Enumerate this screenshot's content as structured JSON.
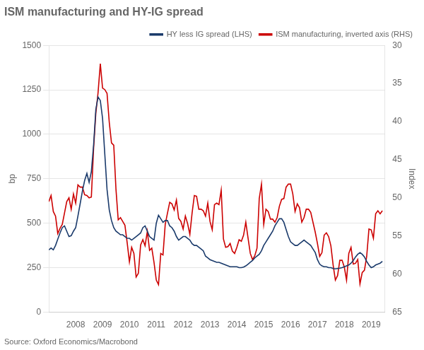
{
  "chart_data": {
    "type": "line",
    "title": "ISM manufacturing and HY-IG spread",
    "ylabel": "bp",
    "y2label": "Index",
    "source": "Source: Oxford Economics/Macrobond",
    "x": [
      2007.0,
      2007.083,
      2007.167,
      2007.25,
      2007.333,
      2007.417,
      2007.5,
      2007.583,
      2007.667,
      2007.75,
      2007.833,
      2007.917,
      2008.0,
      2008.083,
      2008.167,
      2008.25,
      2008.333,
      2008.417,
      2008.5,
      2008.583,
      2008.667,
      2008.75,
      2008.833,
      2008.917,
      2009.0,
      2009.083,
      2009.167,
      2009.25,
      2009.333,
      2009.417,
      2009.5,
      2009.583,
      2009.667,
      2009.75,
      2009.833,
      2009.917,
      2010.0,
      2010.083,
      2010.167,
      2010.25,
      2010.333,
      2010.417,
      2010.5,
      2010.583,
      2010.667,
      2010.75,
      2010.833,
      2010.917,
      2011.0,
      2011.083,
      2011.167,
      2011.25,
      2011.333,
      2011.417,
      2011.5,
      2011.583,
      2011.667,
      2011.75,
      2011.833,
      2011.917,
      2012.0,
      2012.083,
      2012.167,
      2012.25,
      2012.333,
      2012.417,
      2012.5,
      2012.583,
      2012.667,
      2012.75,
      2012.833,
      2012.917,
      2013.0,
      2013.083,
      2013.167,
      2013.25,
      2013.333,
      2013.417,
      2013.5,
      2013.583,
      2013.667,
      2013.75,
      2013.833,
      2013.917,
      2014.0,
      2014.083,
      2014.167,
      2014.25,
      2014.333,
      2014.417,
      2014.5,
      2014.583,
      2014.667,
      2014.75,
      2014.833,
      2014.917,
      2015.0,
      2015.083,
      2015.167,
      2015.25,
      2015.333,
      2015.417,
      2015.5,
      2015.583,
      2015.667,
      2015.75,
      2015.833,
      2015.917,
      2016.0,
      2016.083,
      2016.167,
      2016.25,
      2016.333,
      2016.417,
      2016.5,
      2016.583,
      2016.667,
      2016.75,
      2016.833,
      2016.917,
      2017.0,
      2017.083,
      2017.167,
      2017.25,
      2017.333,
      2017.417,
      2017.5,
      2017.583,
      2017.667,
      2017.75,
      2017.833,
      2017.917,
      2018.0,
      2018.083,
      2018.167,
      2018.25,
      2018.333,
      2018.417,
      2018.5,
      2018.583,
      2018.667,
      2018.75,
      2018.833,
      2018.917,
      2019.0,
      2019.083,
      2019.167,
      2019.25,
      2019.333,
      2019.417
    ],
    "series": [
      {
        "name": "HY less IG spread (LHS)",
        "color": "#1a3a6b",
        "values": [
          350,
          360,
          350,
          375,
          410,
          445,
          475,
          485,
          455,
          425,
          430,
          455,
          475,
          540,
          610,
          680,
          740,
          780,
          730,
          790,
          940,
          1140,
          1210,
          1190,
          1090,
          890,
          690,
          575,
          515,
          475,
          455,
          445,
          435,
          435,
          425,
          415,
          415,
          405,
          415,
          425,
          435,
          445,
          475,
          485,
          455,
          425,
          415,
          405,
          500,
          545,
          525,
          505,
          515,
          515,
          485,
          475,
          455,
          425,
          405,
          415,
          425,
          425,
          415,
          405,
          385,
          375,
          375,
          365,
          355,
          345,
          315,
          305,
          295,
          290,
          285,
          280,
          280,
          275,
          270,
          265,
          260,
          255,
          255,
          255,
          255,
          250,
          250,
          253,
          260,
          270,
          280,
          290,
          305,
          315,
          325,
          345,
          375,
          395,
          415,
          435,
          455,
          485,
          505,
          525,
          525,
          505,
          465,
          425,
          395,
          385,
          375,
          375,
          385,
          395,
          405,
          395,
          385,
          375,
          355,
          335,
          295,
          270,
          260,
          255,
          255,
          250,
          250,
          245,
          243,
          245,
          247,
          250,
          255,
          260,
          265,
          275,
          290,
          310,
          325,
          335,
          325,
          310,
          285,
          265,
          250,
          255,
          265,
          270,
          275,
          285
        ]
      },
      {
        "name": "ISM manufacturing, inverted axis (RHS)",
        "color": "#cc0000",
        "axis": "y2",
        "values": [
          50.5,
          49.7,
          51.8,
          52.4,
          54.7,
          54.0,
          53.5,
          52.0,
          50.5,
          50.0,
          51.5,
          49.5,
          50.7,
          48.3,
          48.6,
          48.6,
          49.6,
          49.7,
          50.0,
          49.9,
          43.5,
          38.9,
          36.2,
          32.4,
          35.6,
          35.8,
          36.3,
          40.1,
          42.8,
          43.1,
          48.9,
          52.9,
          52.6,
          53.1,
          53.6,
          55.9,
          58.4,
          56.5,
          57.3,
          60.4,
          59.9,
          56.2,
          55.5,
          56.3,
          54.4,
          56.9,
          56.6,
          58.5,
          60.8,
          61.4,
          57.3,
          57.5,
          53.5,
          52.0,
          50.6,
          50.8,
          51.6,
          50.3,
          52.7,
          53.1,
          54.1,
          52.4,
          53.4,
          54.8,
          52.0,
          49.7,
          49.8,
          51.5,
          51.5,
          51.7,
          52.4,
          50.7,
          53.1,
          54.2,
          50.9,
          50.7,
          50.9,
          49.0,
          55.4,
          56.5,
          56.4,
          56.0,
          57.0,
          57.3,
          56.5,
          55.5,
          55.7,
          54.9,
          53.2,
          55.3,
          57.3,
          58.1,
          57.6,
          56.6,
          50.1,
          48.2,
          53.5,
          51.5,
          51.8,
          52.8,
          52.8,
          53.2,
          52.6,
          51.1,
          50.2,
          50.1,
          48.6,
          48.2,
          48.2,
          49.5,
          51.8,
          50.8,
          51.3,
          53.2,
          52.6,
          51.5,
          51.5,
          51.9,
          53.2,
          54.5,
          56.0,
          57.7,
          57.2,
          54.9,
          54.6,
          55.1,
          56.3,
          58.8,
          60.8,
          60.2,
          58.2,
          58.2,
          59.1,
          60.8,
          57.3,
          56.5,
          58.7,
          58.6,
          58.1,
          61.3,
          59.8,
          59.5,
          57.7,
          54.1,
          54.2,
          55.3,
          52.1,
          51.7,
          52.1,
          51.7
        ]
      }
    ],
    "xlim": [
      2007.0,
      2019.5
    ],
    "xticks": [
      2008,
      2009,
      2010,
      2011,
      2012,
      2013,
      2014,
      2015,
      2016,
      2017,
      2018,
      2019
    ],
    "ylim": [
      0,
      1500
    ],
    "yticks": [
      0,
      250,
      500,
      750,
      1000,
      1250,
      1500
    ],
    "y2lim": [
      65,
      30
    ],
    "y2ticks": [
      30,
      35,
      40,
      45,
      50,
      55,
      60,
      65
    ],
    "grid": true,
    "legend": "upper right"
  }
}
